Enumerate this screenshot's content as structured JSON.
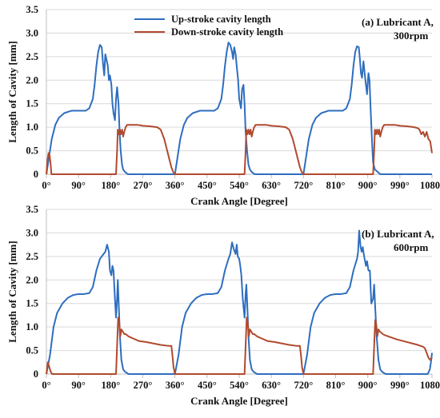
{
  "chart_data": [
    {
      "type": "line",
      "annotation_lines": [
        "(a) Lubricant A,",
        "300rpm"
      ],
      "xlabel": "Crank Angle [Degree]",
      "ylabel": "Length of Cavity [mm]",
      "xlim": [
        0,
        1080
      ],
      "ylim": [
        0,
        3.5
      ],
      "x_ticks": [
        0,
        90,
        180,
        270,
        360,
        450,
        540,
        630,
        720,
        810,
        900,
        990,
        1080
      ],
      "x_tick_labels": [
        "0°",
        "90°",
        "180°",
        "270°",
        "360°",
        "450°",
        "540°",
        "630°",
        "720°",
        "810°",
        "900°",
        "990°",
        "1080°"
      ],
      "y_ticks": [
        0,
        0.5,
        1.0,
        1.5,
        2.0,
        2.5,
        3.0,
        3.5
      ],
      "y_tick_labels": [
        "0",
        "0.5",
        "1.0",
        "1.5",
        "2.0",
        "2.5",
        "3.0",
        "3.5"
      ],
      "grid": "horizontal",
      "legend": "top-center",
      "series": [
        {
          "name": "Up-stroke cavity length",
          "color": "#2e6ebf",
          "x": [
            0,
            5,
            15,
            25,
            35,
            50,
            70,
            90,
            110,
            120,
            130,
            135,
            140,
            145,
            150,
            155,
            158,
            162,
            165,
            168,
            172,
            175,
            178,
            182,
            185,
            188,
            192,
            195,
            198,
            202,
            205,
            208,
            212,
            215,
            220,
            228,
            235,
            360,
            365,
            375,
            385,
            395,
            410,
            430,
            450,
            470,
            480,
            490,
            495,
            500,
            505,
            510,
            515,
            520,
            523,
            526,
            530,
            533,
            537,
            540,
            545,
            548,
            552,
            555,
            558,
            562,
            566,
            570,
            575,
            583,
            590,
            720,
            725,
            735,
            745,
            755,
            770,
            790,
            810,
            830,
            840,
            850,
            855,
            860,
            865,
            870,
            875,
            878,
            881,
            884,
            888,
            892,
            895,
            898,
            902,
            905,
            908,
            912,
            915,
            920,
            928,
            935,
            1080
          ],
          "y": [
            0,
            0.25,
            0.75,
            1.05,
            1.2,
            1.3,
            1.35,
            1.35,
            1.35,
            1.4,
            1.6,
            1.9,
            2.3,
            2.6,
            2.75,
            2.7,
            2.4,
            2.1,
            2.55,
            2.45,
            2.3,
            2.0,
            2.1,
            1.9,
            1.5,
            1.3,
            1.15,
            1.6,
            1.85,
            1.5,
            0.9,
            0.5,
            0.2,
            0.1,
            0.05,
            0,
            0,
            0,
            0.25,
            0.75,
            1.05,
            1.2,
            1.3,
            1.35,
            1.35,
            1.35,
            1.4,
            1.6,
            1.9,
            2.3,
            2.6,
            2.8,
            2.75,
            2.6,
            2.45,
            2.7,
            2.55,
            2.3,
            2.0,
            1.6,
            1.4,
            1.8,
            1.9,
            1.5,
            0.9,
            0.5,
            0.2,
            0.1,
            0.05,
            0,
            0,
            0,
            0.25,
            0.75,
            1.05,
            1.2,
            1.3,
            1.35,
            1.35,
            1.35,
            1.4,
            1.6,
            1.9,
            2.3,
            2.6,
            2.72,
            2.7,
            2.45,
            2.15,
            2.05,
            2.4,
            2.1,
            1.9,
            1.7,
            2.15,
            2.0,
            1.4,
            0.7,
            0.25,
            0.1,
            0.05,
            0,
            0
          ]
        },
        {
          "name": "Down-stroke cavity length",
          "color": "#b04a2e",
          "x": [
            0,
            3,
            6,
            9,
            12,
            14,
            17,
            20,
            25,
            195,
            198,
            200,
            203,
            206,
            209,
            212,
            215,
            218,
            222,
            226,
            230,
            240,
            255,
            270,
            290,
            310,
            320,
            325,
            330,
            335,
            340,
            345,
            350,
            355,
            360,
            555,
            558,
            560,
            563,
            566,
            569,
            572,
            575,
            578,
            582,
            586,
            590,
            600,
            615,
            630,
            650,
            670,
            680,
            685,
            690,
            695,
            700,
            705,
            710,
            715,
            720,
            915,
            918,
            920,
            923,
            926,
            929,
            932,
            935,
            938,
            942,
            946,
            950,
            960,
            975,
            990,
            1010,
            1030,
            1040,
            1045,
            1050,
            1055,
            1060,
            1065,
            1070,
            1075,
            1080
          ],
          "y": [
            0,
            0.3,
            0.45,
            0.4,
            0.2,
            0,
            0,
            0,
            0,
            0,
            0.5,
            0.95,
            0.85,
            0.95,
            0.85,
            0.95,
            0.8,
            0.9,
            1.0,
            1.05,
            1.05,
            1.05,
            1.05,
            1.03,
            1.02,
            1.0,
            0.95,
            0.85,
            0.75,
            0.6,
            0.45,
            0.3,
            0.15,
            0.05,
            0,
            0,
            0.5,
            0.95,
            0.85,
            0.95,
            0.85,
            0.95,
            0.8,
            0.9,
            1.0,
            1.05,
            1.05,
            1.05,
            1.05,
            1.03,
            1.02,
            1.0,
            0.95,
            0.85,
            0.75,
            0.6,
            0.45,
            0.3,
            0.15,
            0.05,
            0,
            0,
            0.5,
            0.95,
            0.85,
            0.95,
            0.85,
            0.95,
            0.8,
            0.9,
            1.0,
            1.05,
            1.05,
            1.05,
            1.05,
            1.03,
            1.02,
            1.0,
            0.98,
            0.95,
            0.85,
            0.9,
            0.8,
            0.9,
            0.75,
            0.7,
            0.45
          ]
        }
      ]
    },
    {
      "type": "line",
      "annotation_lines": [
        "(b) Lubricant A,",
        "600rpm"
      ],
      "xlabel": "Crank Angle [Degree]",
      "ylabel": "Length of Cavity [mm]",
      "xlim": [
        0,
        1080
      ],
      "ylim": [
        0,
        3.5
      ],
      "x_ticks": [
        0,
        90,
        180,
        270,
        360,
        450,
        540,
        630,
        720,
        810,
        900,
        990,
        1080
      ],
      "x_tick_labels": [
        "0°",
        "90°",
        "180°",
        "270°",
        "360°",
        "450°",
        "540°",
        "630°",
        "720°",
        "810°",
        "900°",
        "990°",
        "1080°"
      ],
      "y_ticks": [
        0,
        0.5,
        1.0,
        1.5,
        2.0,
        2.5,
        3.0,
        3.5
      ],
      "y_tick_labels": [
        "0",
        "0.5",
        "1.0",
        "1.5",
        "2.0",
        "2.5",
        "3.0",
        "3.5"
      ],
      "grid": "horizontal",
      "legend": "none",
      "series": [
        {
          "name": "Up-stroke cavity length",
          "color": "#2e6ebf",
          "x": [
            0,
            10,
            20,
            30,
            45,
            60,
            75,
            90,
            105,
            120,
            130,
            140,
            150,
            155,
            160,
            165,
            170,
            175,
            178,
            182,
            185,
            188,
            192,
            195,
            198,
            200,
            203,
            206,
            210,
            215,
            220,
            230,
            360,
            370,
            380,
            390,
            405,
            420,
            435,
            450,
            465,
            480,
            490,
            500,
            510,
            515,
            520,
            525,
            530,
            533,
            536,
            540,
            543,
            546,
            550,
            555,
            558,
            560,
            563,
            566,
            570,
            575,
            580,
            590,
            720,
            730,
            740,
            750,
            765,
            780,
            795,
            810,
            825,
            840,
            850,
            860,
            870,
            873,
            876,
            880,
            883,
            886,
            890,
            895,
            898,
            902,
            906,
            910,
            915,
            918,
            921,
            925,
            930,
            935,
            940,
            950,
            1068,
            1074,
            1077,
            1080
          ],
          "y": [
            0,
            0.4,
            1.0,
            1.3,
            1.5,
            1.62,
            1.68,
            1.7,
            1.7,
            1.72,
            1.85,
            2.2,
            2.45,
            2.5,
            2.55,
            2.6,
            2.75,
            2.6,
            2.2,
            2.1,
            2.3,
            2.2,
            1.6,
            1.2,
            1.6,
            2.0,
            1.4,
            0.8,
            0.3,
            0.1,
            0.05,
            0,
            0,
            0.4,
            1.0,
            1.3,
            1.5,
            1.62,
            1.68,
            1.7,
            1.7,
            1.72,
            1.85,
            2.2,
            2.45,
            2.55,
            2.8,
            2.65,
            2.55,
            2.75,
            2.5,
            2.45,
            2.3,
            2.1,
            1.6,
            1.2,
            1.7,
            1.9,
            1.4,
            0.8,
            0.3,
            0.1,
            0.05,
            0,
            0,
            0.4,
            1.0,
            1.3,
            1.5,
            1.62,
            1.68,
            1.7,
            1.7,
            1.72,
            1.85,
            2.2,
            2.45,
            2.6,
            3.05,
            2.7,
            2.6,
            2.7,
            2.5,
            2.3,
            2.4,
            2.2,
            2.2,
            1.5,
            1.6,
            1.9,
            1.4,
            0.8,
            0.3,
            0.1,
            0.05,
            0,
            0,
            0.1,
            0.25,
            0.45
          ]
        },
        {
          "name": "Down-stroke cavity length",
          "color": "#b04a2e",
          "x": [
            0,
            4,
            8,
            12,
            16,
            20,
            195,
            198,
            201,
            204,
            207,
            210,
            214,
            218,
            222,
            230,
            245,
            260,
            280,
            300,
            320,
            340,
            350,
            353,
            356,
            360,
            555,
            558,
            561,
            564,
            567,
            570,
            574,
            578,
            582,
            590,
            605,
            620,
            640,
            660,
            680,
            700,
            710,
            713,
            716,
            720,
            915,
            918,
            921,
            924,
            927,
            930,
            934,
            938,
            942,
            950,
            965,
            980,
            1000,
            1020,
            1040,
            1055,
            1060,
            1065,
            1070,
            1075,
            1080
          ],
          "y": [
            0,
            0.25,
            0.15,
            0.05,
            0,
            0,
            0,
            0.6,
            1.2,
            1.1,
            0.8,
            0.95,
            0.9,
            0.85,
            0.85,
            0.8,
            0.75,
            0.7,
            0.68,
            0.65,
            0.62,
            0.6,
            0.6,
            0.4,
            0.15,
            0,
            0,
            0.6,
            1.2,
            1.1,
            0.8,
            0.95,
            0.9,
            0.85,
            0.85,
            0.8,
            0.75,
            0.7,
            0.68,
            0.65,
            0.62,
            0.6,
            0.6,
            0.4,
            0.15,
            0,
            0,
            0.6,
            1.15,
            1.05,
            0.8,
            0.95,
            0.9,
            0.88,
            0.85,
            0.82,
            0.78,
            0.74,
            0.7,
            0.66,
            0.62,
            0.58,
            0.55,
            0.45,
            0.35,
            0.3,
            0.35
          ]
        }
      ]
    }
  ]
}
